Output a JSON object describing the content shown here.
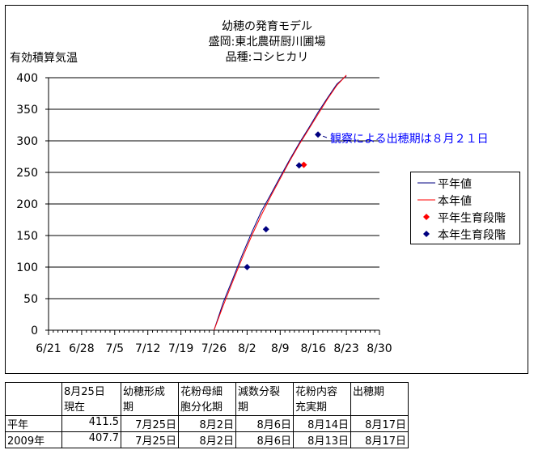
{
  "chart_data": {
    "type": "line",
    "title": "幼穂の発育モデル",
    "subtitle_lines": [
      "盛岡:東北農研厨川圃場",
      "品種:コシヒカリ"
    ],
    "ylabel": "有効積算気温",
    "xlabel": "",
    "x_tick_labels": [
      "6/21",
      "6/28",
      "7/5",
      "7/12",
      "7/19",
      "7/26",
      "8/2",
      "8/9",
      "8/16",
      "8/23",
      "8/30"
    ],
    "y_tick_labels": [
      "0",
      "50",
      "100",
      "150",
      "200",
      "250",
      "300",
      "350",
      "400"
    ],
    "xlim": [
      "6/21",
      "8/30"
    ],
    "ylim": [
      0,
      400
    ],
    "grid": "horizontal",
    "legend_position": "right",
    "series": [
      {
        "name": "平年値",
        "kind": "line",
        "color": "#000080",
        "points": [
          [
            "7/26",
            0
          ],
          [
            "7/28",
            45
          ],
          [
            "7/30",
            82
          ],
          [
            "8/1",
            120
          ],
          [
            "8/3",
            155
          ],
          [
            "8/5",
            188
          ],
          [
            "8/7",
            215
          ],
          [
            "8/9",
            243
          ],
          [
            "8/11",
            270
          ],
          [
            "8/13",
            296
          ],
          [
            "8/15",
            320
          ],
          [
            "8/17",
            345
          ],
          [
            "8/19",
            368
          ],
          [
            "8/21",
            390
          ],
          [
            "8/23",
            403
          ]
        ]
      },
      {
        "name": "本年値",
        "kind": "line",
        "color": "#ff0000",
        "points": [
          [
            "7/26",
            0
          ],
          [
            "7/28",
            40
          ],
          [
            "7/30",
            78
          ],
          [
            "8/1",
            115
          ],
          [
            "8/3",
            150
          ],
          [
            "8/5",
            182
          ],
          [
            "8/7",
            212
          ],
          [
            "8/9",
            240
          ],
          [
            "8/11",
            268
          ],
          [
            "8/13",
            294
          ],
          [
            "8/15",
            318
          ],
          [
            "8/17",
            342
          ],
          [
            "8/19",
            366
          ],
          [
            "8/21",
            388
          ],
          [
            "8/23",
            404
          ]
        ]
      },
      {
        "name": "平年生育段階",
        "kind": "marker",
        "marker": "diamond",
        "color": "#ff0000",
        "points": [
          [
            "8/14",
            262
          ]
        ]
      },
      {
        "name": "本年生育段階",
        "kind": "marker",
        "marker": "diamond",
        "color": "#000080",
        "points": [
          [
            "8/2",
            100
          ],
          [
            "8/6",
            160
          ],
          [
            "8/13",
            261
          ],
          [
            "8/17",
            310
          ]
        ]
      }
    ],
    "annotation": "観察による出穂期は８月２１日"
  },
  "table": {
    "headers": [
      "",
      "8月25日\n現在",
      "幼穂形成\n期",
      "花粉母細\n胞分化期",
      "減数分裂\n期",
      "花粉内容\n充実期",
      "出穂期"
    ],
    "rows": [
      [
        "平年",
        "411.5",
        "7月25日",
        "8月2日",
        "8月6日",
        "8月14日",
        "8月17日"
      ],
      [
        "2009年",
        "407.7",
        "7月25日",
        "8月2日",
        "8月6日",
        "8月13日",
        "8月17日"
      ]
    ]
  }
}
